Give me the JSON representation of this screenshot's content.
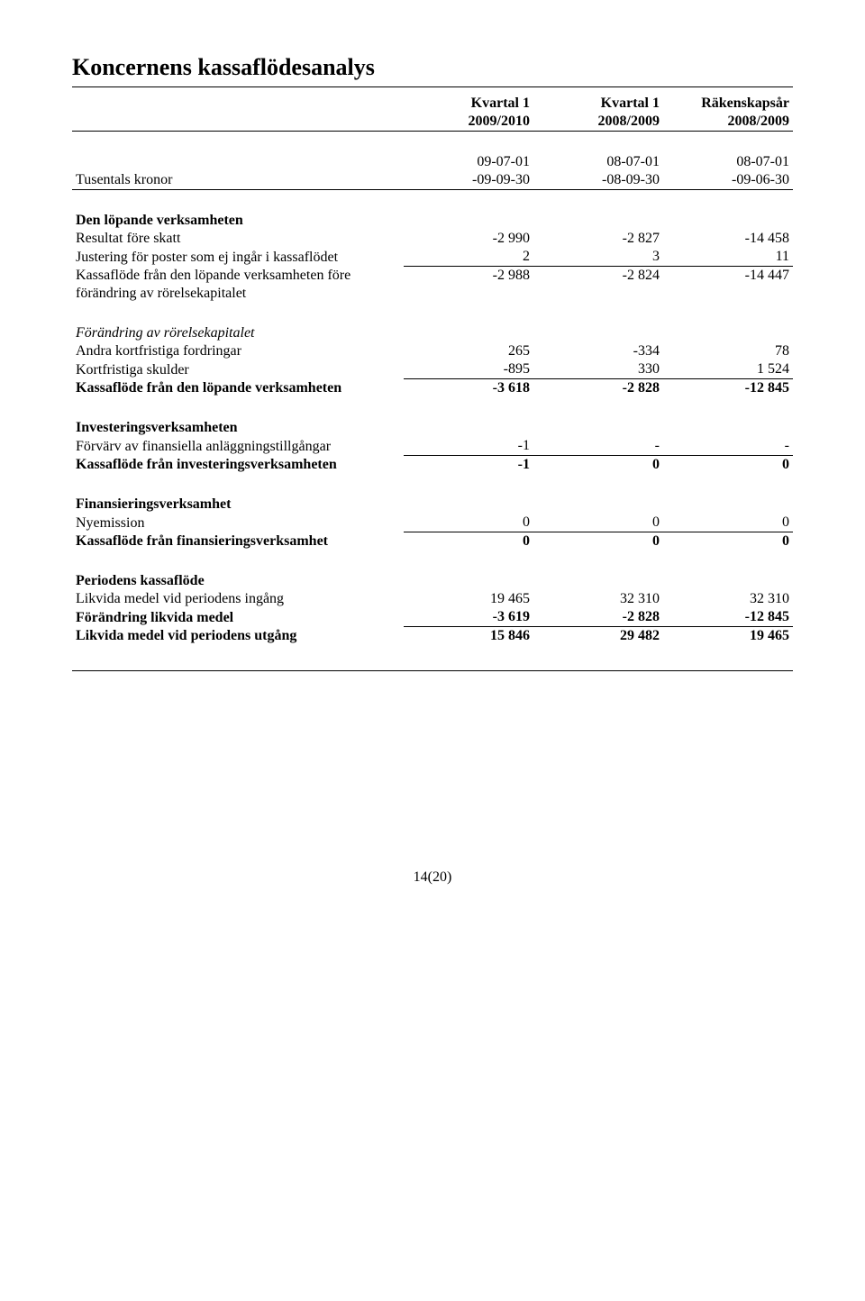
{
  "pageTitle": "Koncernens kassaflödesanalys",
  "header": {
    "col1_line1": "Kvartal 1",
    "col1_line2": "2009/2010",
    "col2_line1": "Kvartal 1",
    "col2_line2": "2008/2009",
    "col3_line1": "Räkenskapsår",
    "col3_line2": "2008/2009"
  },
  "dateRow1": {
    "c1": "09-07-01",
    "c2": "08-07-01",
    "c3": "08-07-01"
  },
  "dateRow2": {
    "label": "Tusentals kronor",
    "c1": "-09-09-30",
    "c2": "-08-09-30",
    "c3": "-09-06-30"
  },
  "sec1": {
    "title": "Den löpande verksamheten",
    "r1": {
      "label": "Resultat före skatt",
      "c1": "-2 990",
      "c2": "-2 827",
      "c3": "-14 458"
    },
    "r2": {
      "label": "Justering för poster som ej ingår i kassaflödet",
      "c1": "2",
      "c2": "3",
      "c3": "11"
    },
    "r3": {
      "label": "Kassaflöde från den löpande verksamheten före",
      "c1": "-2 988",
      "c2": "-2 824",
      "c3": "-14 447"
    },
    "r4": {
      "label": "förändring av rörelsekapitalet"
    }
  },
  "sec2": {
    "title": "Förändring av rörelsekapitalet",
    "r1": {
      "label": "Andra kortfristiga fordringar",
      "c1": "265",
      "c2": "-334",
      "c3": "78"
    },
    "r2": {
      "label": "Kortfristiga skulder",
      "c1": "-895",
      "c2": "330",
      "c3": "1 524"
    },
    "r3": {
      "label": "Kassaflöde från den löpande verksamheten",
      "c1": "-3 618",
      "c2": "-2 828",
      "c3": "-12 845"
    }
  },
  "sec3": {
    "title": "Investeringsverksamheten",
    "r1": {
      "label": "Förvärv av finansiella anläggningstillgångar",
      "c1": "-1",
      "c2": "-",
      "c3": "-"
    },
    "r2": {
      "label": "Kassaflöde från investeringsverksamheten",
      "c1": "-1",
      "c2": "0",
      "c3": "0"
    }
  },
  "sec4": {
    "title": "Finansieringsverksamhet",
    "r1": {
      "label": "Nyemission",
      "c1": "0",
      "c2": "0",
      "c3": "0"
    },
    "r2": {
      "label": "Kassaflöde från finansieringsverksamhet",
      "c1": "0",
      "c2": "0",
      "c3": "0"
    }
  },
  "sec5": {
    "title": "Periodens kassaflöde",
    "r1": {
      "label": "Likvida medel vid periodens ingång",
      "c1": "19 465",
      "c2": "32 310",
      "c3": "32 310"
    },
    "r2": {
      "label": "Förändring likvida medel",
      "c1": "-3 619",
      "c2": "-2 828",
      "c3": "-12 845"
    },
    "r3": {
      "label": "Likvida medel vid periodens utgång",
      "c1": "15 846",
      "c2": "29 482",
      "c3": "19 465"
    }
  },
  "pageNumber": "14(20)"
}
